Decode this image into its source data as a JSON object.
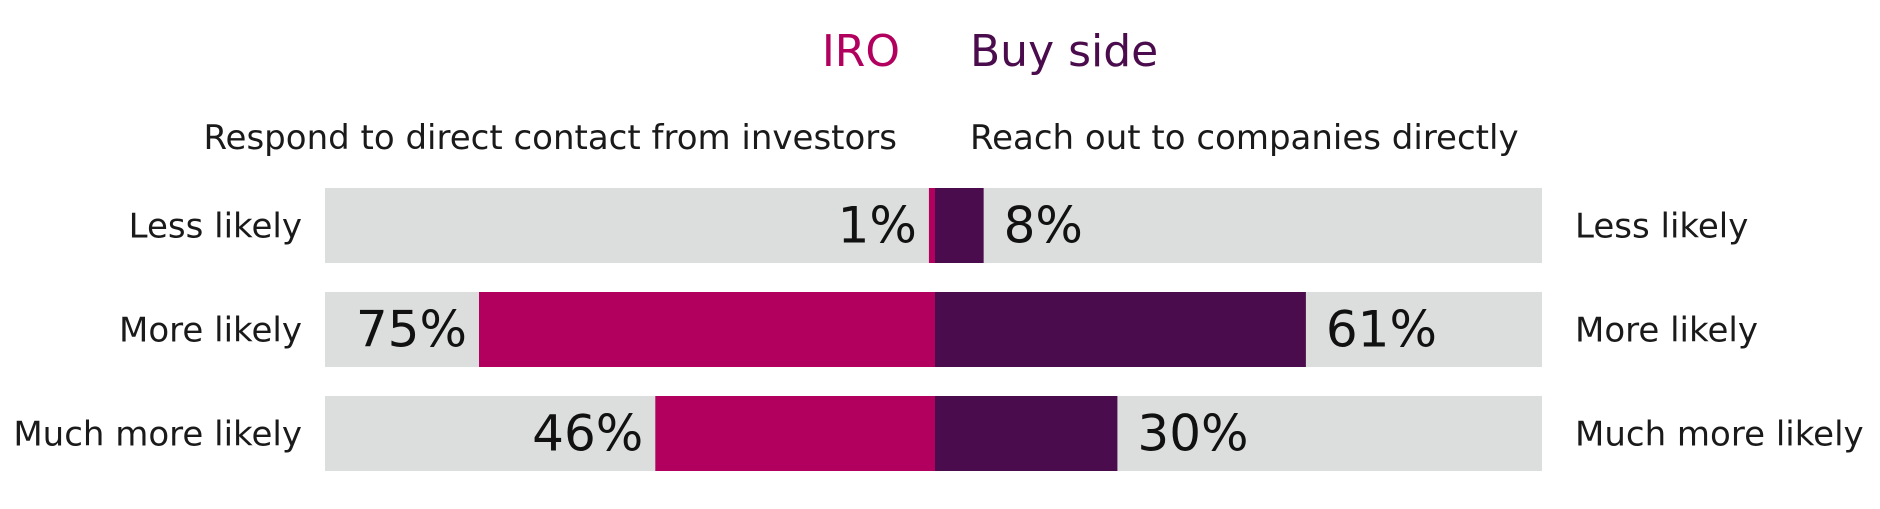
{
  "legend": {
    "iro_label": "IRO",
    "buy_side_label": "Buy side"
  },
  "headers": {
    "left": "Respond to direct contact from investors",
    "right": "Reach out to companies directly"
  },
  "colors": {
    "iro": "#b1005d",
    "buy_side": "#4a0c4c",
    "track": "#dcdddd",
    "text": "#1a1a1a"
  },
  "chart_data": {
    "type": "bar",
    "orientation": "horizontal-diverging",
    "categories": [
      "Less likely",
      "More likely",
      "Much more likely"
    ],
    "series": [
      {
        "name": "IRO",
        "values": [
          1,
          75,
          46
        ],
        "labels": [
          "1%",
          "75%",
          "46%"
        ]
      },
      {
        "name": "Buy side",
        "values": [
          8,
          61,
          30
        ],
        "labels": [
          "8%",
          "61%",
          "30%"
        ]
      }
    ],
    "xlim": [
      0,
      100
    ],
    "unit": "%",
    "grid": false
  }
}
